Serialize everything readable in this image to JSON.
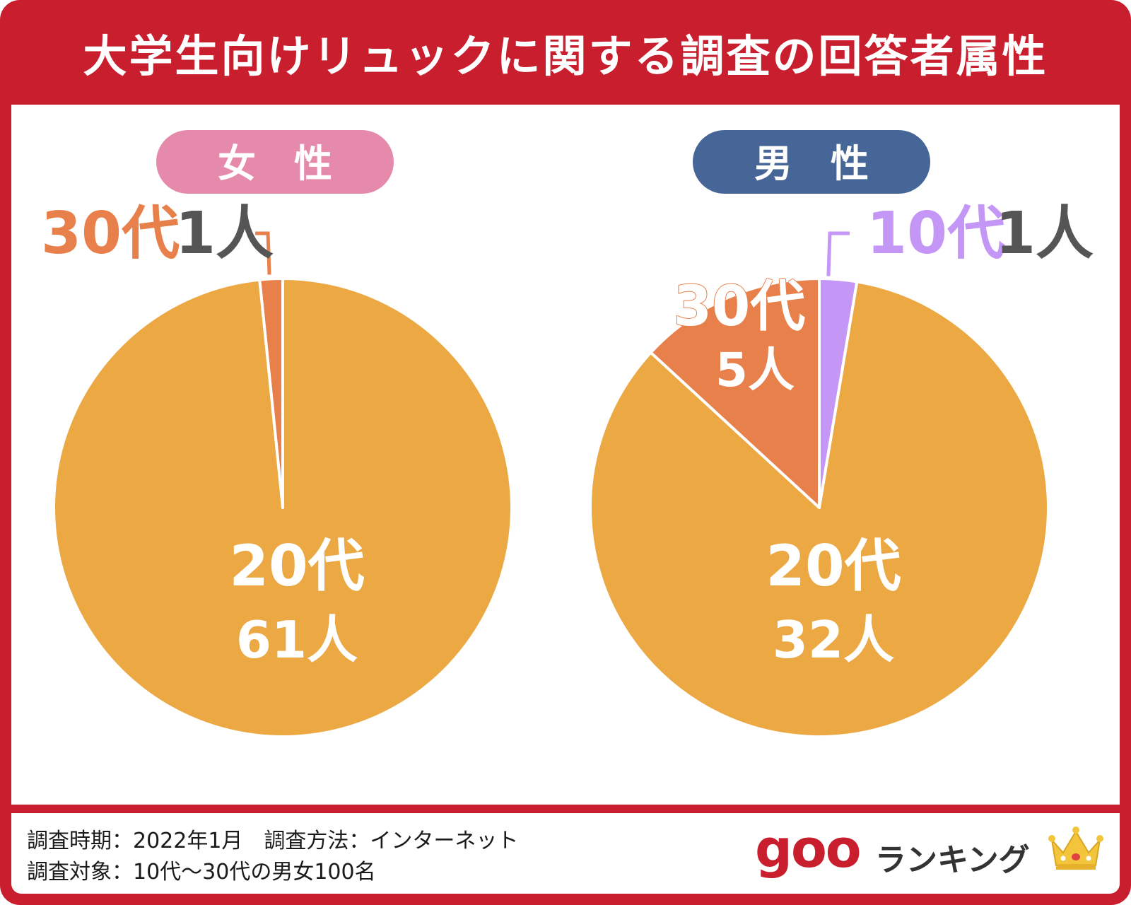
{
  "title": "大学生向けリュックに関する調査の回答者属性",
  "colors": {
    "frame": "#c81e2d",
    "10代": "#c497f7",
    "20代": "#eba843",
    "30代": "#e8804b",
    "female_pill": "#e68aac",
    "male_pill": "#466697",
    "count_text": "#555555"
  },
  "chart_data": [
    {
      "type": "pie",
      "title": "女　性",
      "slices": [
        {
          "label": "30代",
          "count_label": "1",
          "unit": "人",
          "value": 1
        },
        {
          "label": "20代",
          "count_label": "61",
          "unit": "人",
          "value": 61
        }
      ]
    },
    {
      "type": "pie",
      "title": "男　性",
      "slices": [
        {
          "label": "10代",
          "count_label": "1",
          "unit": "人",
          "value": 1
        },
        {
          "label": "20代",
          "count_label": "32",
          "unit": "人",
          "value": 32
        },
        {
          "label": "30代",
          "count_label": "5",
          "unit": "人",
          "value": 5
        }
      ]
    }
  ],
  "footer": {
    "line1": "調査時期：2022年1月　調査方法：インターネット",
    "line2": "調査対象：10代〜30代の男女100名",
    "logo_goo": "goo",
    "logo_text": "ランキング",
    "crown_icon": "crown-icon"
  }
}
